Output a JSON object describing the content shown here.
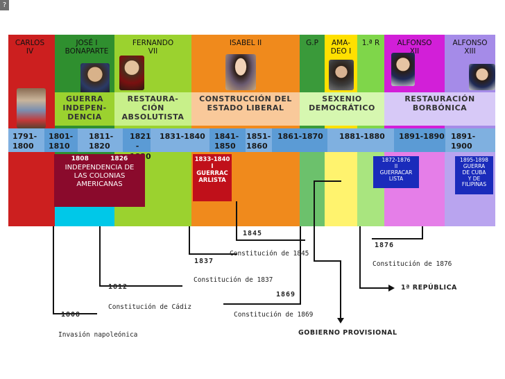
{
  "corner_icon": "?",
  "reigns": [
    {
      "name": "CARLOS\nIV",
      "color": "#cc1f1f",
      "text_color": "#111111"
    },
    {
      "name": "JOSÉ I\nBONAPARTE",
      "color": "#2f8f2f",
      "text_color": "#111111"
    },
    {
      "name": "FERNANDO\nVII",
      "color": "#9bd22f",
      "text_color": "#111111"
    },
    {
      "name": "ISABEL II",
      "color": "#f08a1c",
      "text_color": "#111111"
    },
    {
      "name": "G.P",
      "color": "#3a9a3a",
      "text_color": "#111111"
    },
    {
      "name": "AMA-\nDEO I",
      "color": "#ffe000",
      "text_color": "#111111"
    },
    {
      "name": "1.ª R",
      "color": "#7fd64a",
      "text_color": "#111111"
    },
    {
      "name": "ALFONSO\nXII",
      "color": "#d21fd8",
      "text_color": "#111111"
    },
    {
      "name": "ALFONSO\nXIII",
      "color": "#a58be8",
      "text_color": "#111111"
    }
  ],
  "stages": [
    {
      "name": "GUERRA\nINDEPEN-\nDENCIA"
    },
    {
      "name": "RESTAURA-\nCIÓN\nABSOLUTISTA"
    },
    {
      "name": "CONSTRUCCIÓN DEL\nESTADO LIBERAL"
    },
    {
      "name": "SEXENIO\nDEMOCRÁTICO"
    },
    {
      "name": "RESTAURACIÓN\nBORBÓNICA"
    }
  ],
  "periods": [
    "1791-\n1800",
    "1801-\n1810",
    "1811-\n1820",
    "1821\n-\n1830",
    "1831-1840",
    "1841-\n1850",
    "1851-\n1860",
    "1861-1870",
    "1881-1880",
    "1891-1890",
    "1891-1900"
  ],
  "event_boxes": {
    "independencia": {
      "years": "1808          1826",
      "text": "INDEPENDENCIA DE\nLAS COLONIAS\nAMERICANAS"
    },
    "carlista1": {
      "text": "1833-1840\nI\nGUERRAC\nARLISTA"
    },
    "carlista2": {
      "text": "1872-1876\nII\nGUERRACAR\nLISTA"
    },
    "cuba": {
      "text": "1895-1898\nGUERRA\nDE CUBA\nY DE\nFILIPINAS"
    }
  },
  "events": [
    {
      "year": "1808",
      "label": "Invasión napoleónica"
    },
    {
      "year": "1812",
      "label": "Constitución de Cádiz"
    },
    {
      "year": "1837",
      "label": "Constitución de 1837"
    },
    {
      "year": "1845",
      "label": "Constitución de 1845"
    },
    {
      "year": "1869",
      "label": "Constitución de 1869"
    },
    {
      "year": "1876",
      "label": "Constitución de 1876"
    },
    {
      "year": "",
      "label": "1ª REPÚBLICA"
    },
    {
      "year": "",
      "label": "GOBIERNO PROVISIONAL"
    }
  ],
  "colors": {
    "stage_band": "#9bd22f",
    "period_band": "#5b9bd5",
    "lower_light_green": "#c8f08a",
    "magenta_box": "#8a0a2c",
    "carlista_red": "#c0101a",
    "blue_box": "#1a2bbb"
  }
}
